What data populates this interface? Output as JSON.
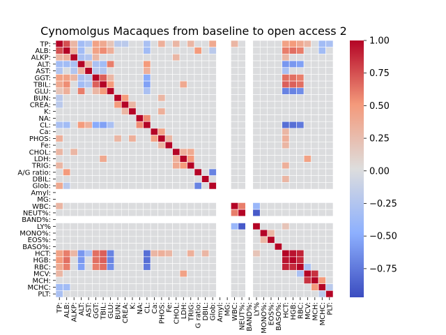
{
  "chart_data": {
    "type": "heatmap",
    "title": "Cynomolgus Macaques from baseline to open access 2",
    "xlabel": "",
    "ylabel": "",
    "labels": [
      "TP:",
      "ALB:",
      "ALKP:",
      "ALT:",
      "AST:",
      "GGT:",
      "TBIL:",
      "GLU:",
      "BUN:",
      "CREA:",
      "K:",
      "NA:",
      "CL:",
      "Ca:",
      "PHOS:",
      "Fe:",
      "CHOL:",
      "LDH:",
      "TRIG:",
      "A/G ratio:",
      "DBIL:",
      "Glob:",
      "Amyl:",
      "MG:",
      "WBC:",
      "NEUT%:",
      "BAND%:",
      "LY%",
      "MONO%:",
      "EOS%:",
      "BASO%:",
      "HCT:",
      "HGB:",
      "RBC:",
      "MCV:",
      "MCH:",
      "MCHC:",
      "PLT:"
    ],
    "x_tick_labels": [
      "TP:",
      "ALB:",
      "ALKP:",
      "ALT:",
      "AST:",
      "GGT:",
      "TBIL:",
      "GLU:",
      "BUN:",
      "CREA:",
      "K:",
      "NA:",
      "CL:",
      "Ca:",
      "PHOS:",
      "Fe:",
      "CHOL:",
      "LDH:",
      "TRIG:",
      "G ratio:",
      "DBIL:",
      "Glob:",
      "Amyl:",
      "MG:",
      "WBC:",
      "NEUT%:",
      "BAND%:",
      "LY%",
      "MONO%:",
      "EOS%:",
      "BASO%:",
      "HCT:",
      "HGB:",
      "RBC:",
      "MCV:",
      "MCH:",
      "MCHC:",
      "PLT:"
    ],
    "missing": [
      "Amyl:",
      "MG:",
      "BAND%:"
    ],
    "pairs": [
      {
        "a": "TP:",
        "b": "ALB:",
        "v": 0.75
      },
      {
        "a": "TP:",
        "b": "ALKP:",
        "v": 0.3
      },
      {
        "a": "TP:",
        "b": "ALT:",
        "v": -0.35
      },
      {
        "a": "TP:",
        "b": "AST:",
        "v": -0.25
      },
      {
        "a": "TP:",
        "b": "GGT:",
        "v": 0.45
      },
      {
        "a": "TP:",
        "b": "TBIL:",
        "v": 0.4
      },
      {
        "a": "TP:",
        "b": "GLU:",
        "v": 0.2
      },
      {
        "a": "TP:",
        "b": "BUN:",
        "v": -0.2
      },
      {
        "a": "TP:",
        "b": "CREA:",
        "v": -0.2
      },
      {
        "a": "TP:",
        "b": "CL:",
        "v": -0.3
      },
      {
        "a": "TP:",
        "b": "PHOS:",
        "v": 0.35
      },
      {
        "a": "TP:",
        "b": "CHOL:",
        "v": 0.3
      },
      {
        "a": "TP:",
        "b": "TRIG:",
        "v": 0.3
      },
      {
        "a": "TP:",
        "b": "Glob:",
        "v": 0.4
      },
      {
        "a": "TP:",
        "b": "WBC:",
        "v": 0.3
      },
      {
        "a": "TP:",
        "b": "HCT:",
        "v": 0.45
      },
      {
        "a": "TP:",
        "b": "HGB:",
        "v": 0.5
      },
      {
        "a": "TP:",
        "b": "RBC:",
        "v": 0.4
      },
      {
        "a": "TP:",
        "b": "MCV:",
        "v": 0.3
      },
      {
        "a": "TP:",
        "b": "MCHC:",
        "v": -0.35
      },
      {
        "a": "TP:",
        "b": "PLT:",
        "v": -0.3
      },
      {
        "a": "ALB:",
        "b": "ALKP:",
        "v": 0.35
      },
      {
        "a": "ALB:",
        "b": "ALT:",
        "v": -0.35
      },
      {
        "a": "ALB:",
        "b": "GGT:",
        "v": 0.45
      },
      {
        "a": "ALB:",
        "b": "TBIL:",
        "v": 0.55
      },
      {
        "a": "ALB:",
        "b": "GLU:",
        "v": 0.35
      },
      {
        "a": "ALB:",
        "b": "CL:",
        "v": -0.35
      },
      {
        "a": "ALB:",
        "b": "A/G ratio:",
        "v": 0.5
      },
      {
        "a": "ALB:",
        "b": "Glob:",
        "v": -0.2
      },
      {
        "a": "ALB:",
        "b": "HCT:",
        "v": 0.6
      },
      {
        "a": "ALB:",
        "b": "HGB:",
        "v": 0.65
      },
      {
        "a": "ALB:",
        "b": "RBC:",
        "v": 0.6
      },
      {
        "a": "ALB:",
        "b": "MCHC:",
        "v": -0.35
      },
      {
        "a": "ALKP:",
        "b": "ALT:",
        "v": -0.3
      },
      {
        "a": "ALKP:",
        "b": "AST:",
        "v": -0.25
      },
      {
        "a": "ALKP:",
        "b": "GGT:",
        "v": 0.3
      },
      {
        "a": "ALKP:",
        "b": "CHOL:",
        "v": 0.3
      },
      {
        "a": "ALKP:",
        "b": "HCT:",
        "v": 0.3
      },
      {
        "a": "ALT:",
        "b": "AST:",
        "v": 0.3
      },
      {
        "a": "ALT:",
        "b": "GGT:",
        "v": -0.3
      },
      {
        "a": "ALT:",
        "b": "TBIL:",
        "v": -0.35
      },
      {
        "a": "ALT:",
        "b": "GLU:",
        "v": 0.6
      },
      {
        "a": "ALT:",
        "b": "CL:",
        "v": 0.5
      },
      {
        "a": "ALT:",
        "b": "HCT:",
        "v": -0.6
      },
      {
        "a": "ALT:",
        "b": "HGB:",
        "v": -0.6
      },
      {
        "a": "ALT:",
        "b": "RBC:",
        "v": -0.55
      },
      {
        "a": "AST:",
        "b": "GGT:",
        "v": -0.2
      },
      {
        "a": "AST:",
        "b": "TBIL:",
        "v": -0.25
      },
      {
        "a": "AST:",
        "b": "CL:",
        "v": 0.35
      },
      {
        "a": "AST:",
        "b": "HCT:",
        "v": -0.3
      },
      {
        "a": "GGT:",
        "b": "TBIL:",
        "v": 0.7
      },
      {
        "a": "GGT:",
        "b": "GLU:",
        "v": 0.3
      },
      {
        "a": "GGT:",
        "b": "CL:",
        "v": -0.5
      },
      {
        "a": "GGT:",
        "b": "HCT:",
        "v": 0.65
      },
      {
        "a": "GGT:",
        "b": "HGB:",
        "v": 0.65
      },
      {
        "a": "GGT:",
        "b": "RBC:",
        "v": 0.6
      },
      {
        "a": "TBIL:",
        "b": "GLU:",
        "v": 0.5
      },
      {
        "a": "TBIL:",
        "b": "CL:",
        "v": -0.55
      },
      {
        "a": "TBIL:",
        "b": "LDH:",
        "v": 0.4
      },
      {
        "a": "TBIL:",
        "b": "HCT:",
        "v": 0.7
      },
      {
        "a": "TBIL:",
        "b": "HGB:",
        "v": 0.7
      },
      {
        "a": "TBIL:",
        "b": "RBC:",
        "v": 0.65
      },
      {
        "a": "GLU:",
        "b": "CL:",
        "v": -0.3
      },
      {
        "a": "GLU:",
        "b": "HCT:",
        "v": -0.7
      },
      {
        "a": "GLU:",
        "b": "HGB:",
        "v": -0.7
      },
      {
        "a": "GLU:",
        "b": "RBC:",
        "v": -0.65
      },
      {
        "a": "BUN:",
        "b": "CREA:",
        "v": 0.5
      },
      {
        "a": "BUN:",
        "b": "PHOS:",
        "v": 0.3
      },
      {
        "a": "CREA:",
        "b": "K:",
        "v": 0.3
      },
      {
        "a": "K:",
        "b": "PHOS:",
        "v": 0.35
      },
      {
        "a": "NA:",
        "b": "CL:",
        "v": 0.55
      },
      {
        "a": "CL:",
        "b": "HCT:",
        "v": -0.8
      },
      {
        "a": "CL:",
        "b": "HGB:",
        "v": -0.8
      },
      {
        "a": "CL:",
        "b": "RBC:",
        "v": -0.75
      },
      {
        "a": "Ca:",
        "b": "PHOS:",
        "v": 0.45
      },
      {
        "a": "Ca:",
        "b": "HCT:",
        "v": 0.3
      },
      {
        "a": "PHOS:",
        "b": "Fe:",
        "v": 0.3
      },
      {
        "a": "PHOS:",
        "b": "HCT:",
        "v": 0.35
      },
      {
        "a": "Fe:",
        "b": "HCT:",
        "v": 0.3
      },
      {
        "a": "CHOL:",
        "b": "LDH:",
        "v": 0.35
      },
      {
        "a": "CHOL:",
        "b": "TRIG:",
        "v": 0.4
      },
      {
        "a": "LDH:",
        "b": "TRIG:",
        "v": 0.5
      },
      {
        "a": "LDH:",
        "b": "MCV:",
        "v": 0.45
      },
      {
        "a": "TRIG:",
        "b": "HCT:",
        "v": 0.35
      },
      {
        "a": "A/G ratio:",
        "b": "Glob:",
        "v": -0.7
      },
      {
        "a": "DBIL:",
        "b": "HCT:",
        "v": 0.3
      },
      {
        "a": "WBC:",
        "b": "NEUT%:",
        "v": 0.6
      },
      {
        "a": "WBC:",
        "b": "LY%",
        "v": -0.4
      },
      {
        "a": "NEUT%:",
        "b": "LY%",
        "v": -0.9
      },
      {
        "a": "LY%",
        "b": "HCT:",
        "v": 0.2
      },
      {
        "a": "MONO%:",
        "b": "EOS%:",
        "v": 0.3
      },
      {
        "a": "HCT:",
        "b": "HGB:",
        "v": 0.95
      },
      {
        "a": "HCT:",
        "b": "RBC:",
        "v": 0.9
      },
      {
        "a": "HGB:",
        "b": "RBC:",
        "v": 0.88
      },
      {
        "a": "RBC:",
        "b": "MCV:",
        "v": -0.3
      },
      {
        "a": "MCV:",
        "b": "MCH:",
        "v": 0.85
      },
      {
        "a": "MCH:",
        "b": "MCHC:",
        "v": 0.5
      },
      {
        "a": "MCHC:",
        "b": "PLT:",
        "v": -0.2
      }
    ],
    "colorbar": {
      "colormap": "coolwarm",
      "min": -0.97,
      "max": 1.0,
      "ticks": [
        1.0,
        0.75,
        0.5,
        0.25,
        0.0,
        -0.25,
        -0.5,
        -0.75
      ],
      "tick_labels": [
        "1.00",
        "0.75",
        "0.50",
        "0.25",
        "0.00",
        "−0.25",
        "−0.50",
        "−0.75"
      ]
    },
    "colors": {
      "cell_border": "#ffffff",
      "background": "#ffffff"
    },
    "grid": false,
    "legend": "colorbar-right"
  }
}
